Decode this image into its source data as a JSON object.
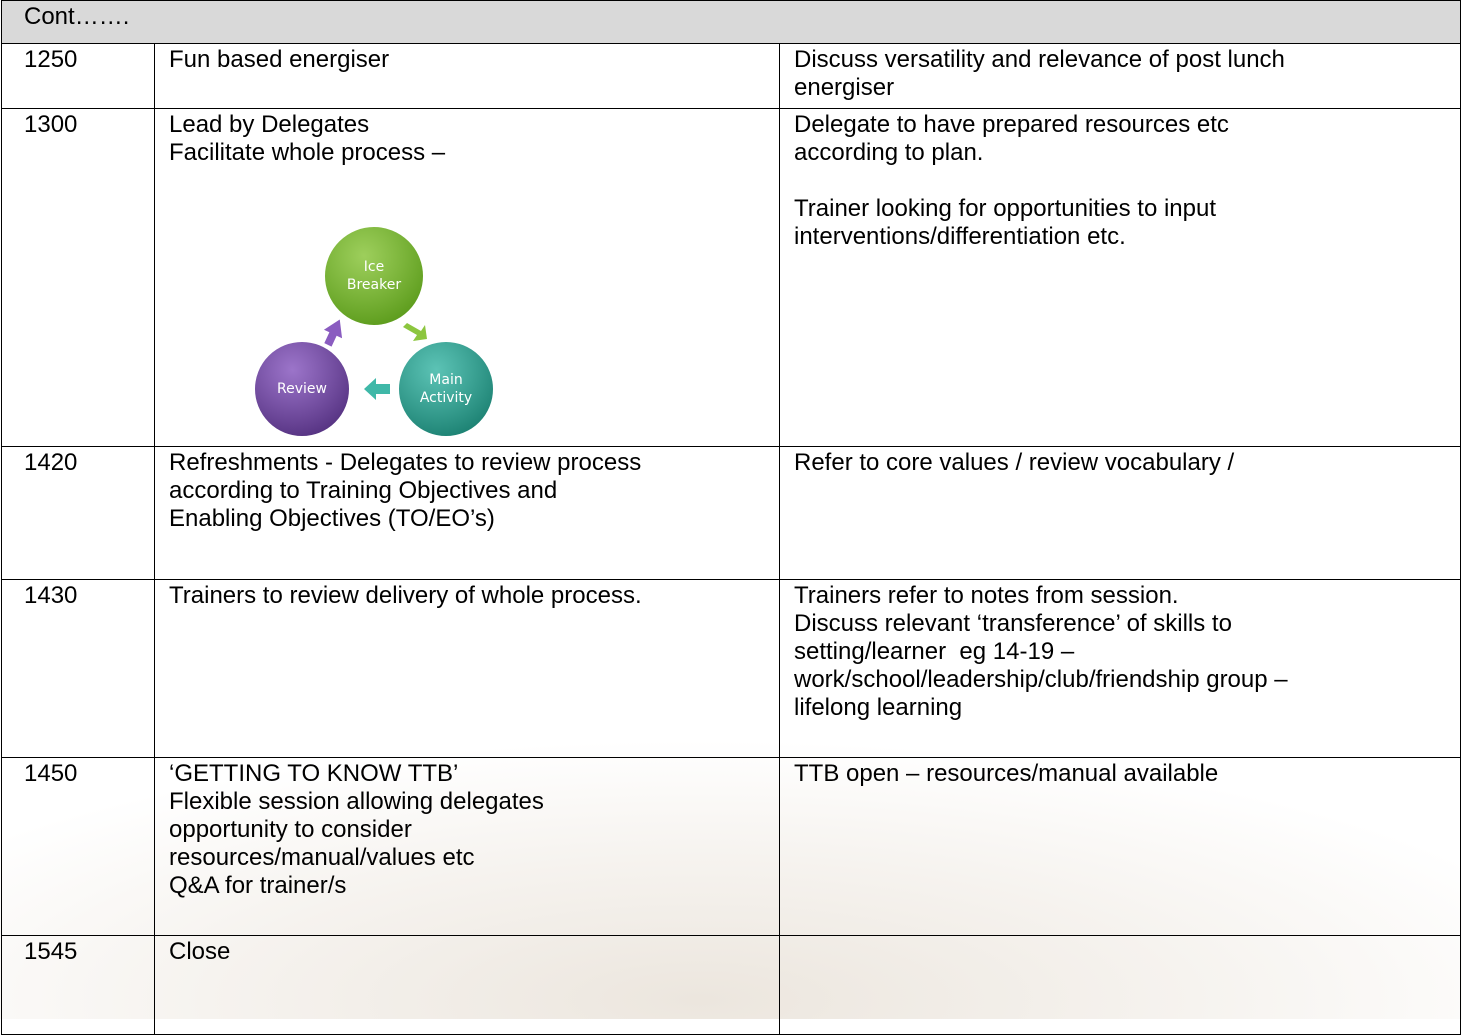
{
  "header": {
    "title": "Cont……."
  },
  "table": {
    "rows": [
      {
        "time": "1250",
        "activity": [
          [
            "Fun based energiser"
          ]
        ],
        "notes": [
          [
            "Discuss versatility and relevance of post lunch",
            "energiser"
          ]
        ]
      },
      {
        "time": "1300",
        "activity": [
          [
            "Lead by Delegates",
            "Facilitate whole process –"
          ]
        ],
        "diagram": {
          "nodes": [
            {
              "label": [
                "Ice",
                "Breaker"
              ]
            },
            {
              "label": [
                "Main",
                "Activity"
              ]
            },
            {
              "label": [
                "Review"
              ]
            }
          ]
        },
        "notes": [
          [
            "Delegate to have prepared resources etc",
            "according to plan."
          ],
          [
            "Trainer looking for opportunities to input",
            "interventions/differentiation etc."
          ]
        ]
      },
      {
        "time": "1420",
        "activity": [
          [
            "Refreshments - Delegates to review process",
            "according to Training Objectives and",
            "Enabling Objectives (TO/EO’s)"
          ]
        ],
        "notes": [
          [
            "Refer to core values / review vocabulary /"
          ]
        ]
      },
      {
        "time": "1430",
        "activity": [
          [
            "Trainers to review delivery of whole process."
          ]
        ],
        "notes": [
          [
            "Trainers refer to notes from session.",
            "Discuss relevant ‘transference’ of skills to",
            "setting/learner  eg 14-19 –",
            "work/school/leadership/club/friendship group –",
            "lifelong learning"
          ]
        ]
      },
      {
        "time": "1450",
        "activity": [
          [
            "‘GETTING TO KNOW TTB’",
            "Flexible session allowing delegates",
            "opportunity to consider",
            "resources/manual/values etc",
            "Q&A for trainer/s"
          ]
        ],
        "notes": [
          [
            "TTB open – resources/manual available"
          ]
        ]
      },
      {
        "time": "1545",
        "activity": [
          [
            "Close"
          ]
        ],
        "notes": [
          []
        ]
      }
    ]
  }
}
